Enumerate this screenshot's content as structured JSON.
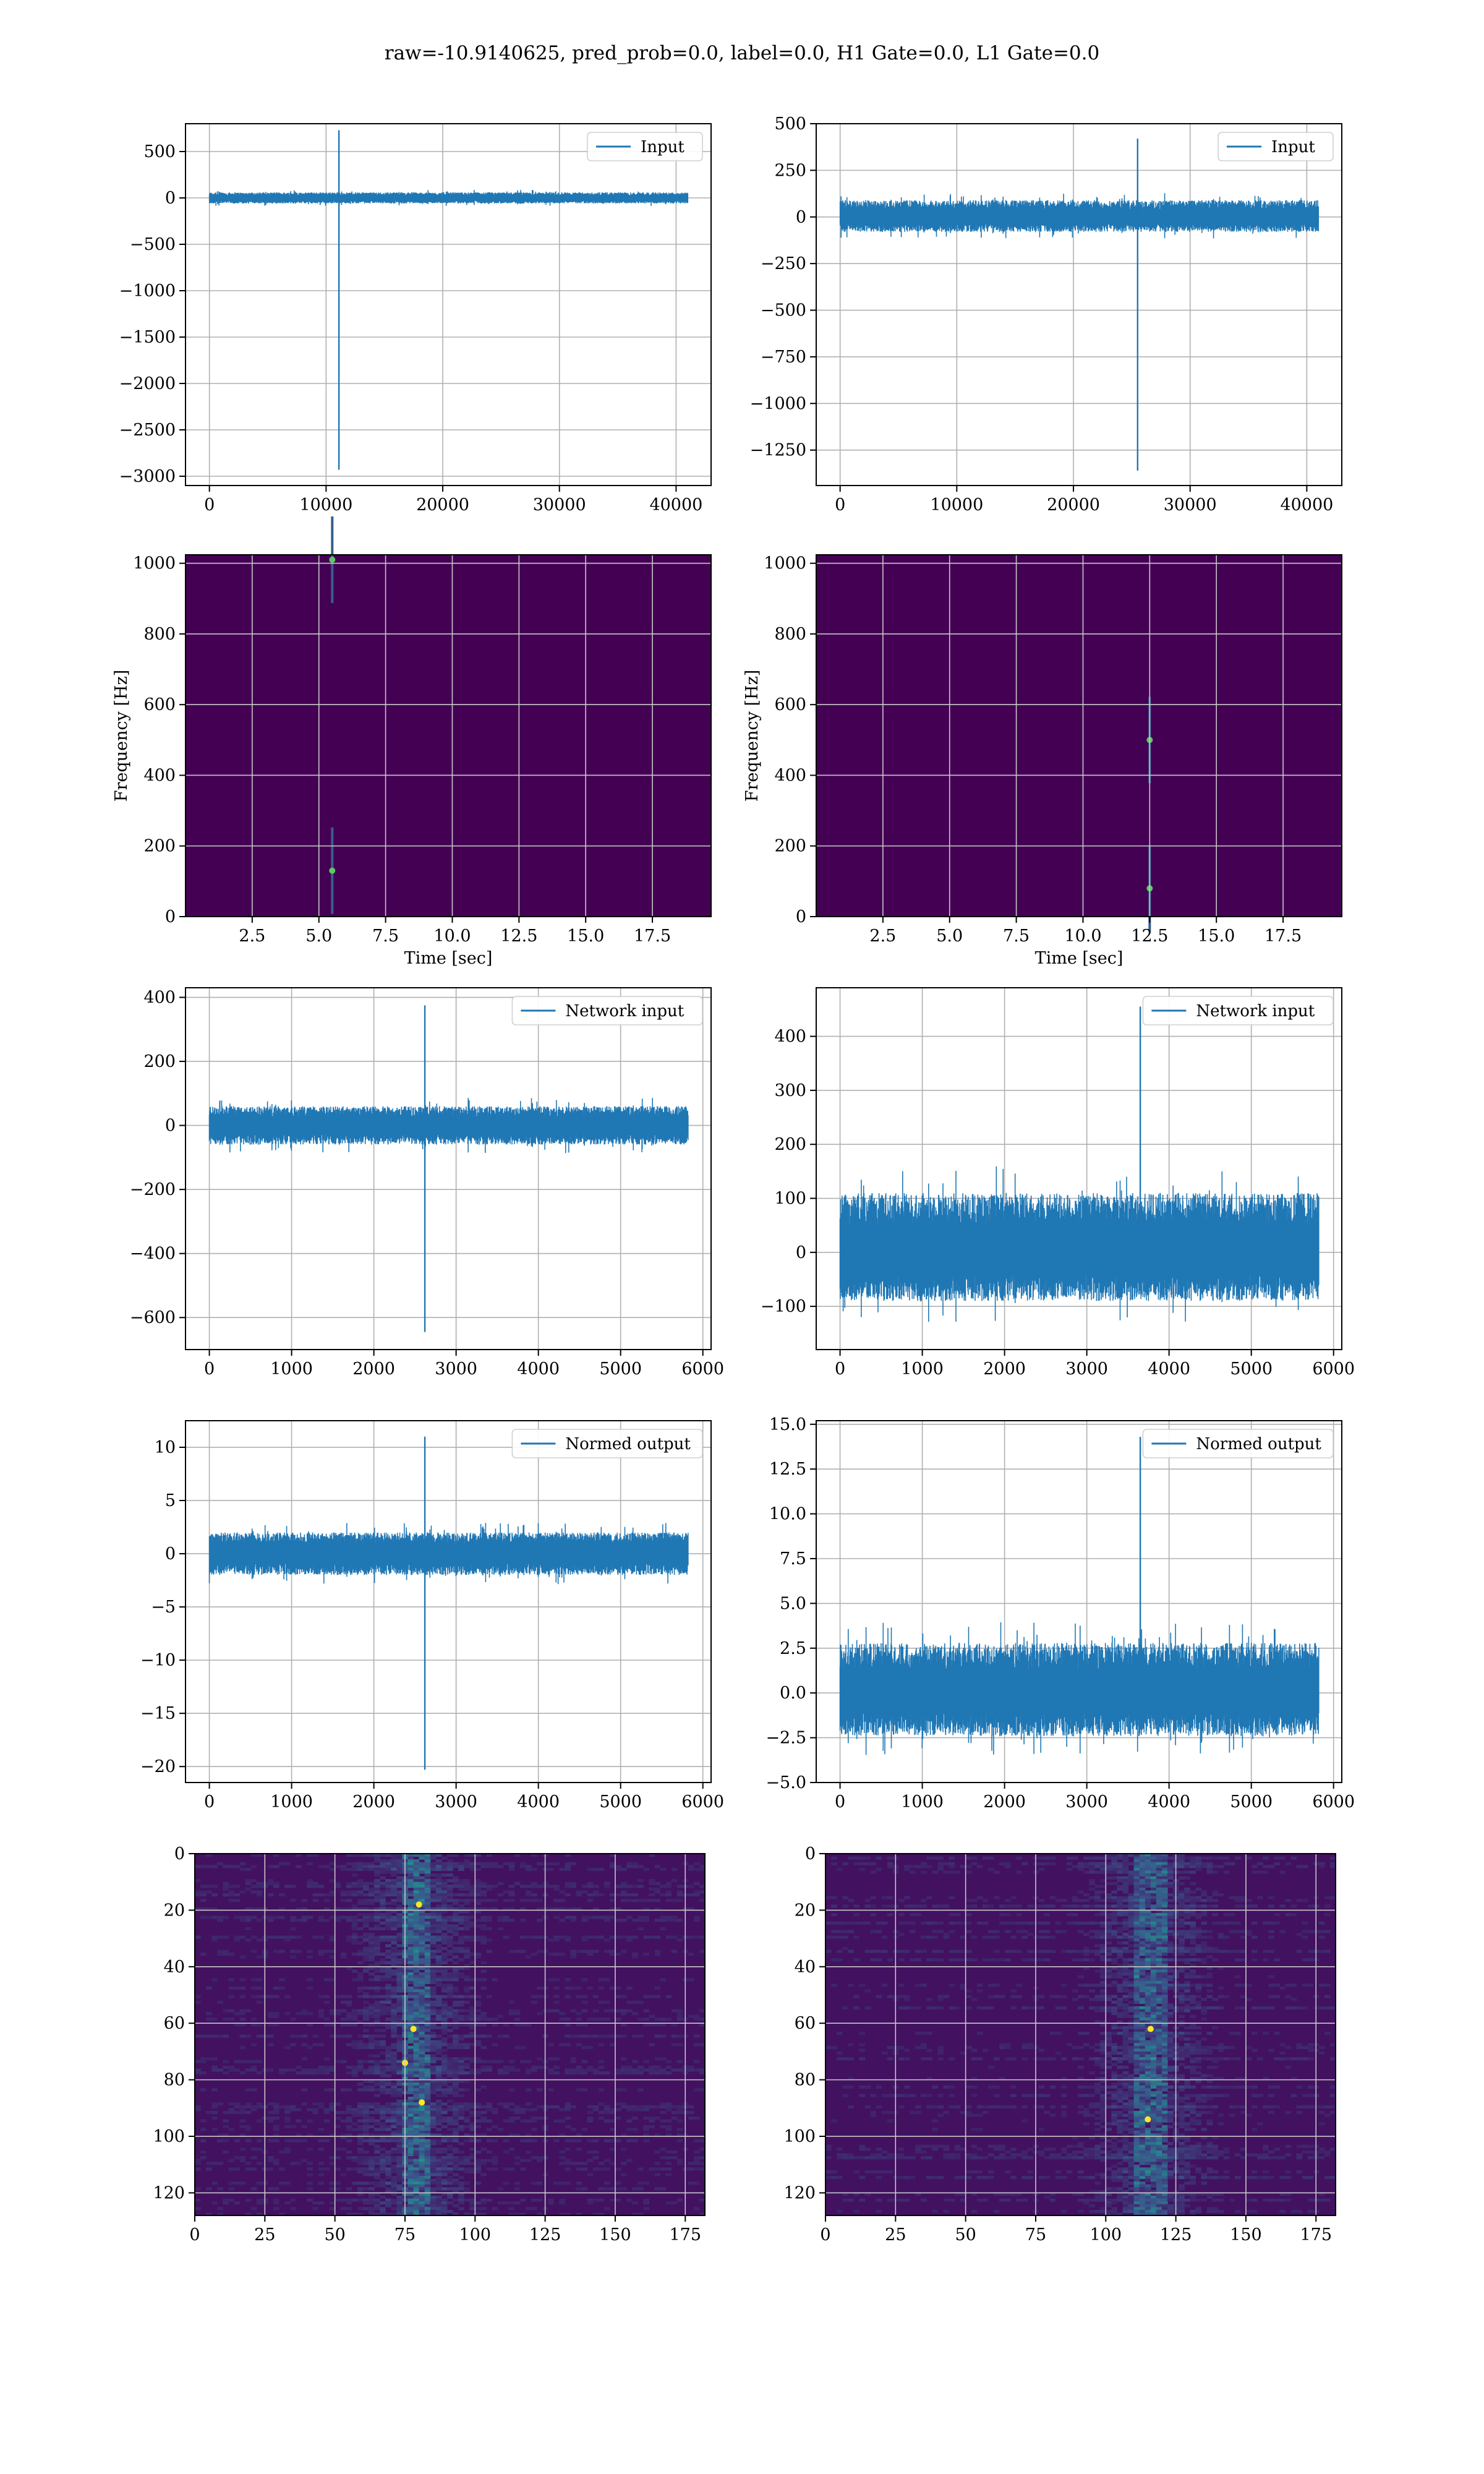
{
  "figure_title": "raw=-10.9140625, pred_prob=0.0, label=0.0, H1 Gate=0.0, L1 Gate=0.0",
  "colors": {
    "line": "#1f77b4",
    "grid": "#b0b0b0",
    "viridis_low": "#440154",
    "viridis_mid": "#21918c",
    "viridis_high": "#fde725"
  },
  "chart_data": [
    {
      "type": "line",
      "legend": "Input",
      "xlim": [
        -2050,
        43000
      ],
      "ylim": [
        -3100,
        800
      ],
      "xticks": [
        0,
        10000,
        20000,
        30000,
        40000
      ],
      "yticks": [
        500,
        0,
        -500,
        -1000,
        -1500,
        -2000,
        -2500,
        -3000
      ],
      "ytick_labels": [
        "500",
        "0",
        "−500",
        "−1000",
        "−1500",
        "−2000",
        "−2500",
        "−3000"
      ],
      "x_range": [
        0,
        41000
      ],
      "noise_band": [
        -60,
        60
      ],
      "spike": {
        "x": 11100,
        "max": 730,
        "min": -2930
      }
    },
    {
      "type": "line",
      "legend": "Input",
      "xlim": [
        -2050,
        43000
      ],
      "ylim": [
        -1440,
        500
      ],
      "xticks": [
        0,
        10000,
        20000,
        30000,
        40000
      ],
      "yticks": [
        500,
        250,
        0,
        -250,
        -500,
        -750,
        -1000,
        -1250
      ],
      "ytick_labels": [
        "500",
        "250",
        "0",
        "−250",
        "−500",
        "−750",
        "−1000",
        "−1250"
      ],
      "x_range": [
        0,
        41000
      ],
      "noise_band": [
        -80,
        90
      ],
      "spike": {
        "x": 25500,
        "max": 420,
        "min": -1360
      }
    },
    {
      "type": "heatmap",
      "xlabel": "Time [sec]",
      "ylabel": "Frequency [Hz]",
      "xlim": [
        0,
        19.7
      ],
      "ylim": [
        0,
        1024
      ],
      "xticks": [
        2.5,
        5,
        7.5,
        10,
        12.5,
        15,
        17.5
      ],
      "xtick_labels": [
        "2.5",
        "5.0",
        "7.5",
        "10.0",
        "12.5",
        "15.0",
        "17.5"
      ],
      "yticks": [
        0,
        200,
        400,
        600,
        800,
        1000
      ],
      "hot_spots": [
        {
          "t": 5.5,
          "f": 1010
        },
        {
          "t": 5.5,
          "f": 130
        }
      ]
    },
    {
      "type": "heatmap",
      "xlabel": "Time [sec]",
      "ylabel": "Frequency [Hz]",
      "xlim": [
        0,
        19.7
      ],
      "ylim": [
        0,
        1024
      ],
      "xticks": [
        2.5,
        5,
        7.5,
        10,
        12.5,
        15,
        17.5
      ],
      "xtick_labels": [
        "2.5",
        "5.0",
        "7.5",
        "10.0",
        "12.5",
        "15.0",
        "17.5"
      ],
      "yticks": [
        0,
        200,
        400,
        600,
        800,
        1000
      ],
      "hot_spots": [
        {
          "t": 12.5,
          "f": 500
        },
        {
          "t": 12.5,
          "f": 80
        }
      ]
    },
    {
      "type": "line",
      "legend": "Network input",
      "xlim": [
        -290,
        6100
      ],
      "ylim": [
        -700,
        430
      ],
      "xticks": [
        0,
        1000,
        2000,
        3000,
        4000,
        5000,
        6000
      ],
      "yticks": [
        400,
        200,
        0,
        -200,
        -400,
        -600
      ],
      "ytick_labels": [
        "400",
        "200",
        "0",
        "−200",
        "−400",
        "−600"
      ],
      "x_range": [
        0,
        5820
      ],
      "noise_band": [
        -60,
        60
      ],
      "spike": {
        "x": 2620,
        "max": 375,
        "min": -645
      }
    },
    {
      "type": "line",
      "legend": "Network input",
      "xlim": [
        -290,
        6100
      ],
      "ylim": [
        -180,
        490
      ],
      "xticks": [
        0,
        1000,
        2000,
        3000,
        4000,
        5000,
        6000
      ],
      "yticks": [
        400,
        300,
        200,
        100,
        0,
        -100
      ],
      "ytick_labels": [
        "400",
        "300",
        "200",
        "100",
        "0",
        "−100"
      ],
      "x_range": [
        0,
        5820
      ],
      "noise_band": [
        -90,
        110
      ],
      "spike": {
        "x": 3650,
        "max": 455,
        "min": -60
      }
    },
    {
      "type": "line",
      "legend": "Normed output",
      "xlim": [
        -290,
        6100
      ],
      "ylim": [
        -21.5,
        12.5
      ],
      "xticks": [
        0,
        1000,
        2000,
        3000,
        4000,
        5000,
        6000
      ],
      "yticks": [
        10,
        5,
        0,
        -5,
        -10,
        -15,
        -20
      ],
      "ytick_labels": [
        "10",
        "5",
        "0",
        "−5",
        "−10",
        "−15",
        "−20"
      ],
      "x_range": [
        0,
        5820
      ],
      "noise_band": [
        -2,
        2
      ],
      "spike": {
        "x": 2620,
        "max": 11,
        "min": -20.3
      }
    },
    {
      "type": "line",
      "legend": "Normed output",
      "xlim": [
        -290,
        6100
      ],
      "ylim": [
        -5.0,
        15.2
      ],
      "xticks": [
        0,
        1000,
        2000,
        3000,
        4000,
        5000,
        6000
      ],
      "yticks": [
        15,
        12.5,
        10,
        7.5,
        5,
        2.5,
        0,
        -2.5,
        -5
      ],
      "ytick_labels": [
        "15.0",
        "12.5",
        "10.0",
        "7.5",
        "5.0",
        "2.5",
        "0.0",
        "−2.5",
        "−5.0"
      ],
      "x_range": [
        0,
        5820
      ],
      "noise_band": [
        -2.4,
        2.8
      ],
      "spike": {
        "x": 3650,
        "max": 14.3,
        "min": -1.5
      }
    },
    {
      "type": "heatmap",
      "xlim": [
        0,
        182
      ],
      "ylim": [
        128,
        0
      ],
      "xticks": [
        0,
        25,
        50,
        75,
        100,
        125,
        150,
        175
      ],
      "yticks": [
        0,
        20,
        40,
        60,
        80,
        100,
        120
      ],
      "activity_column": 78,
      "bright_points": [
        {
          "x": 80,
          "y": 18
        },
        {
          "x": 78,
          "y": 62
        },
        {
          "x": 75,
          "y": 74
        },
        {
          "x": 81,
          "y": 88
        }
      ]
    },
    {
      "type": "heatmap",
      "xlim": [
        0,
        182
      ],
      "ylim": [
        128,
        0
      ],
      "xticks": [
        0,
        25,
        50,
        75,
        100,
        125,
        150,
        175
      ],
      "yticks": [
        0,
        20,
        40,
        60,
        80,
        100,
        120
      ],
      "activity_column": 115,
      "bright_points": [
        {
          "x": 116,
          "y": 62
        },
        {
          "x": 115,
          "y": 94
        }
      ]
    }
  ]
}
